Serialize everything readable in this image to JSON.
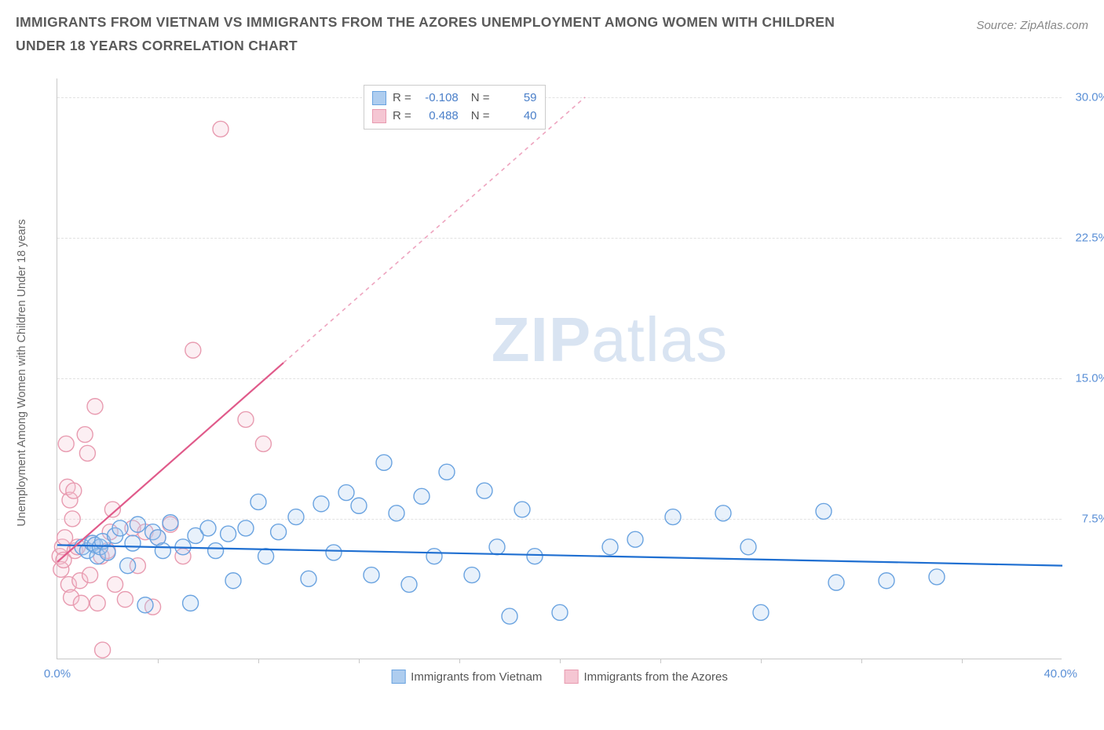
{
  "title": "IMMIGRANTS FROM VIETNAM VS IMMIGRANTS FROM THE AZORES UNEMPLOYMENT AMONG WOMEN WITH CHILDREN UNDER 18 YEARS CORRELATION CHART",
  "source": "Source: ZipAtlas.com",
  "ylabel": "Unemployment Among Women with Children Under 18 years",
  "watermark_zip": "ZIP",
  "watermark_atlas": "atlas",
  "chart": {
    "type": "scatter-correlation",
    "xlim": [
      0,
      40
    ],
    "ylim": [
      0,
      31
    ],
    "yticks": [
      7.5,
      15.0,
      22.5,
      30.0
    ],
    "ytick_labels": [
      "7.5%",
      "15.0%",
      "22.5%",
      "30.0%"
    ],
    "xticks_minor": [
      4,
      8,
      12,
      16,
      20,
      24,
      28,
      32,
      36
    ],
    "xmin_label": "0.0%",
    "xmax_label": "40.0%",
    "background_color": "#ffffff",
    "grid_color": "#e2e2e2",
    "axis_color": "#c8c8c8",
    "marker_radius": 10,
    "marker_stroke_width": 1.4,
    "marker_fill_opacity": 0.28,
    "series": [
      {
        "name": "Immigrants from Vietnam",
        "color_stroke": "#6aa3e0",
        "color_fill": "#aecdef",
        "trend_color": "#1f6fd1",
        "R": "-0.108",
        "N": "59",
        "trend": {
          "x1": 0,
          "y1": 6.1,
          "x2": 40,
          "y2": 5.0,
          "solid_until": 40
        },
        "points": [
          [
            1.0,
            6.0
          ],
          [
            1.2,
            5.8
          ],
          [
            1.4,
            6.2
          ],
          [
            1.5,
            6.1
          ],
          [
            1.6,
            5.5
          ],
          [
            1.7,
            6.0
          ],
          [
            1.8,
            6.3
          ],
          [
            2.0,
            5.7
          ],
          [
            2.3,
            6.6
          ],
          [
            2.5,
            7.0
          ],
          [
            2.8,
            5.0
          ],
          [
            3.0,
            6.2
          ],
          [
            3.2,
            7.2
          ],
          [
            3.5,
            2.9
          ],
          [
            3.8,
            6.8
          ],
          [
            4.0,
            6.5
          ],
          [
            4.2,
            5.8
          ],
          [
            4.5,
            7.3
          ],
          [
            5.0,
            6.0
          ],
          [
            5.3,
            3.0
          ],
          [
            5.5,
            6.6
          ],
          [
            6.0,
            7.0
          ],
          [
            6.3,
            5.8
          ],
          [
            6.8,
            6.7
          ],
          [
            7.0,
            4.2
          ],
          [
            7.5,
            7.0
          ],
          [
            8.0,
            8.4
          ],
          [
            8.3,
            5.5
          ],
          [
            8.8,
            6.8
          ],
          [
            9.5,
            7.6
          ],
          [
            10.0,
            4.3
          ],
          [
            10.5,
            8.3
          ],
          [
            11.0,
            5.7
          ],
          [
            11.5,
            8.9
          ],
          [
            12.0,
            8.2
          ],
          [
            12.5,
            4.5
          ],
          [
            13.0,
            10.5
          ],
          [
            13.5,
            7.8
          ],
          [
            14.0,
            4.0
          ],
          [
            14.5,
            8.7
          ],
          [
            15.0,
            5.5
          ],
          [
            15.5,
            10.0
          ],
          [
            16.5,
            4.5
          ],
          [
            17.0,
            9.0
          ],
          [
            17.5,
            6.0
          ],
          [
            18.0,
            2.3
          ],
          [
            18.5,
            8.0
          ],
          [
            19.0,
            5.5
          ],
          [
            20.0,
            2.5
          ],
          [
            22.0,
            6.0
          ],
          [
            23.0,
            6.4
          ],
          [
            24.5,
            7.6
          ],
          [
            26.5,
            7.8
          ],
          [
            27.5,
            6.0
          ],
          [
            28.0,
            2.5
          ],
          [
            30.5,
            7.9
          ],
          [
            31.0,
            4.1
          ],
          [
            33.0,
            4.2
          ],
          [
            35.0,
            4.4
          ]
        ]
      },
      {
        "name": "Immigrants from the Azores",
        "color_stroke": "#e89bb0",
        "color_fill": "#f5c6d3",
        "trend_color": "#e05a8a",
        "R": "0.488",
        "N": "40",
        "trend": {
          "x1": 0,
          "y1": 5.2,
          "x2": 21,
          "y2": 30.0,
          "solid_until": 9
        },
        "points": [
          [
            0.1,
            5.5
          ],
          [
            0.15,
            4.8
          ],
          [
            0.2,
            6.0
          ],
          [
            0.25,
            5.3
          ],
          [
            0.3,
            6.5
          ],
          [
            0.35,
            11.5
          ],
          [
            0.4,
            9.2
          ],
          [
            0.45,
            4.0
          ],
          [
            0.5,
            8.5
          ],
          [
            0.55,
            3.3
          ],
          [
            0.6,
            7.5
          ],
          [
            0.65,
            9.0
          ],
          [
            0.7,
            5.8
          ],
          [
            0.8,
            6.0
          ],
          [
            0.9,
            4.2
          ],
          [
            0.95,
            3.0
          ],
          [
            1.1,
            12.0
          ],
          [
            1.2,
            11.0
          ],
          [
            1.3,
            4.5
          ],
          [
            1.4,
            6.2
          ],
          [
            1.5,
            13.5
          ],
          [
            1.6,
            3.0
          ],
          [
            1.75,
            5.5
          ],
          [
            1.8,
            0.5
          ],
          [
            2.0,
            5.8
          ],
          [
            2.1,
            6.8
          ],
          [
            2.2,
            8.0
          ],
          [
            2.3,
            4.0
          ],
          [
            2.7,
            3.2
          ],
          [
            3.0,
            7.0
          ],
          [
            3.2,
            5.0
          ],
          [
            3.5,
            6.8
          ],
          [
            3.8,
            2.8
          ],
          [
            4.0,
            6.5
          ],
          [
            4.5,
            7.2
          ],
          [
            5.0,
            5.5
          ],
          [
            5.4,
            16.5
          ],
          [
            6.5,
            28.3
          ],
          [
            7.5,
            12.8
          ],
          [
            8.2,
            11.5
          ]
        ]
      }
    ]
  },
  "legend_top": {
    "r_label": "R =",
    "n_label": "N ="
  },
  "legend_bottom": [
    "Immigrants from Vietnam",
    "Immigrants from the Azores"
  ]
}
